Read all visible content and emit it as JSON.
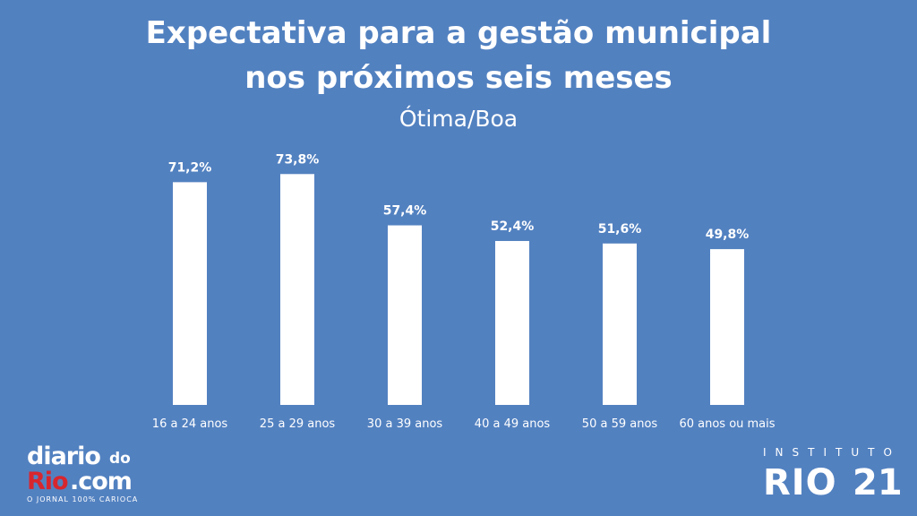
{
  "chart_data": {
    "type": "bar",
    "title_lines": [
      "Expectativa para a gestão municipal",
      "nos próximos seis meses"
    ],
    "subtitle": "Ótima/Boa",
    "categories": [
      "16 a 24 anos",
      "25 a 29 anos",
      "30 a 39 anos",
      "40 a 49 anos",
      "50 a 59 anos",
      "60 anos ou mais"
    ],
    "values": [
      71.2,
      73.8,
      57.4,
      52.4,
      51.6,
      49.8
    ],
    "value_labels": [
      "71,2%",
      "73,8%",
      "57,4%",
      "52,4%",
      "51,6%",
      "49,8%"
    ],
    "ylim": [
      0,
      100
    ],
    "grid": false,
    "colors": {
      "background": "#5281c0",
      "bar": "#ffffff",
      "text": "#ffffff"
    }
  },
  "logos": {
    "left": {
      "diario": "diario",
      "do": "do",
      "rio": "Rio",
      "com": ".com",
      "tagline": "O JORNAL 100% CARIOCA",
      "rio_color": "#d8262e"
    },
    "right": {
      "instituto": "INSTITUTO",
      "rio": "RIO",
      "number": "21"
    }
  }
}
